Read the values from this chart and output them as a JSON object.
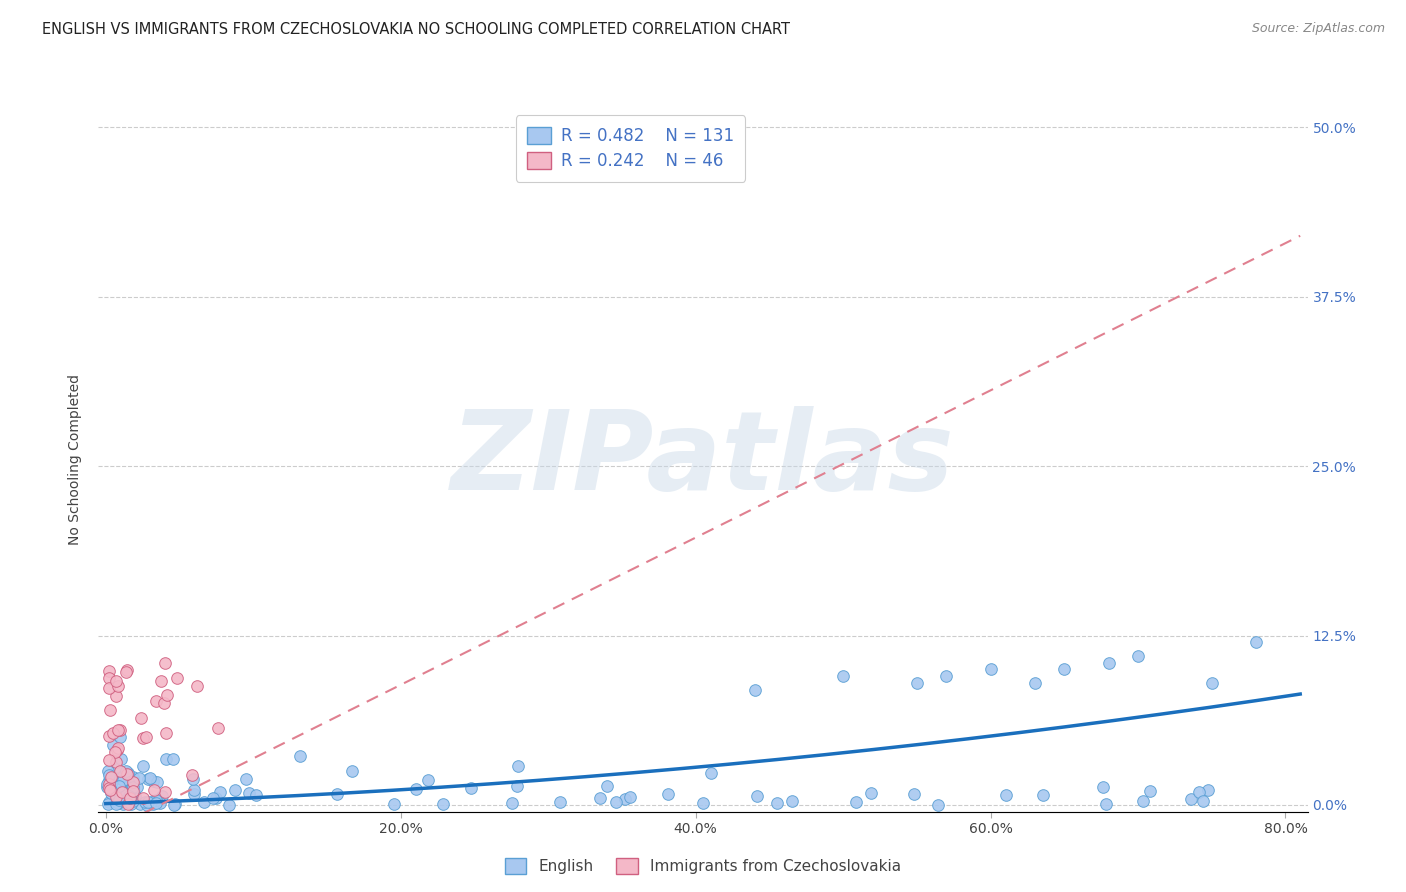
{
  "title": "ENGLISH VS IMMIGRANTS FROM CZECHOSLOVAKIA NO SCHOOLING COMPLETED CORRELATION CHART",
  "source": "Source: ZipAtlas.com",
  "ylabel": "No Schooling Completed",
  "watermark": "ZIPatlas",
  "xlim": [
    -0.005,
    0.815
  ],
  "ylim": [
    -0.005,
    0.515
  ],
  "xticks": [
    0.0,
    0.2,
    0.4,
    0.6,
    0.8
  ],
  "xtick_labels": [
    "0.0%",
    "20.0%",
    "40.0%",
    "60.0%",
    "80.0%"
  ],
  "yticks": [
    0.0,
    0.125,
    0.25,
    0.375,
    0.5
  ],
  "right_ytick_labels": [
    "0.0%",
    "12.5%",
    "25.0%",
    "37.5%",
    "50.0%"
  ],
  "english_color": "#a8c8f0",
  "english_edge_color": "#5a9fd4",
  "immig_color": "#f4b8c8",
  "immig_edge_color": "#d06080",
  "trend_english_color": "#1a6fbd",
  "trend_immig_color": "#e08090",
  "legend_r_english": "R = 0.482",
  "legend_n_english": "N = 131",
  "legend_r_immig": "R = 0.242",
  "legend_n_immig": "N = 46",
  "legend_label_english": "English",
  "legend_label_immig": "Immigrants from Czechoslovakia",
  "title_fontsize": 10.5,
  "axis_label_fontsize": 10,
  "tick_fontsize": 10,
  "grid_color": "#cccccc",
  "grid_style": "--",
  "background_color": "#ffffff",
  "eng_trend_start_x": 0.0,
  "eng_trend_start_y": 0.001,
  "eng_trend_end_x": 0.81,
  "eng_trend_end_y": 0.115,
  "immig_trend_start_x": 0.0,
  "immig_trend_start_y": -0.02,
  "immig_trend_end_x": 0.81,
  "immig_trend_end_y": 0.42
}
